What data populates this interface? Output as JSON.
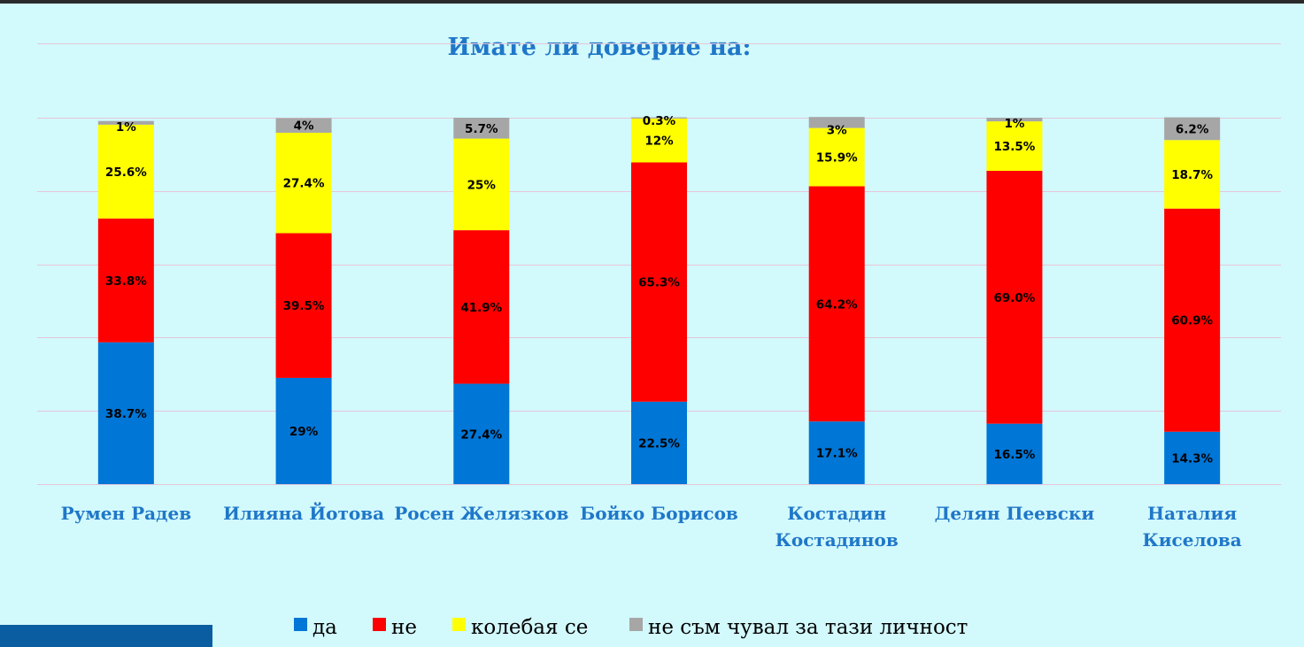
{
  "chart_data": {
    "type": "bar",
    "stacked": true,
    "title": "Имате  ли доверие на:",
    "categories": [
      [
        "Румен Радев"
      ],
      [
        "Илияна Йотова"
      ],
      [
        "Росен Желязков"
      ],
      [
        "Бойко Борисов"
      ],
      [
        "Костадин",
        "Костадинов"
      ],
      [
        "Делян Пеевски"
      ],
      [
        "Наталия",
        "Киселова"
      ]
    ],
    "series": [
      {
        "name": "да",
        "color": "#0076d6",
        "values": [
          38.7,
          29,
          27.4,
          22.5,
          17.1,
          16.5,
          14.3
        ],
        "labels": [
          "38.7%",
          "29%",
          "27.4%",
          "22.5%",
          "17.1%",
          "16.5%",
          "14.3%"
        ]
      },
      {
        "name": "не",
        "color": "#ff0000",
        "values": [
          33.8,
          39.5,
          41.9,
          65.3,
          64.2,
          69.0,
          60.9
        ],
        "labels": [
          "33.8%",
          "39.5%",
          "41.9%",
          "65.3%",
          "64.2%",
          "69.0%",
          "60.9%"
        ]
      },
      {
        "name": "колебая се",
        "color": "#ffff00",
        "values": [
          25.6,
          27.4,
          25,
          12,
          15.9,
          13.5,
          18.7
        ],
        "labels": [
          "25.6%",
          "27.4%",
          "25%",
          "12%",
          "15.9%",
          "13.5%",
          "18.7%"
        ]
      },
      {
        "name": "не съм чувал за тази личност",
        "color": "#a6a6a6",
        "values": [
          1,
          4,
          5.7,
          0.3,
          3,
          1,
          6.2
        ],
        "labels": [
          "1%",
          "4%",
          "5.7%",
          "0.3%",
          "3%",
          "1%",
          "6.2%"
        ]
      }
    ],
    "ylim": [
      0,
      100
    ],
    "grid": true,
    "legend_position": "bottom"
  },
  "colors": {
    "background": "#d2f9fc",
    "title": "#1f77c8",
    "category_labels": "#1f77c8",
    "gridline": "#e7c6d9"
  }
}
